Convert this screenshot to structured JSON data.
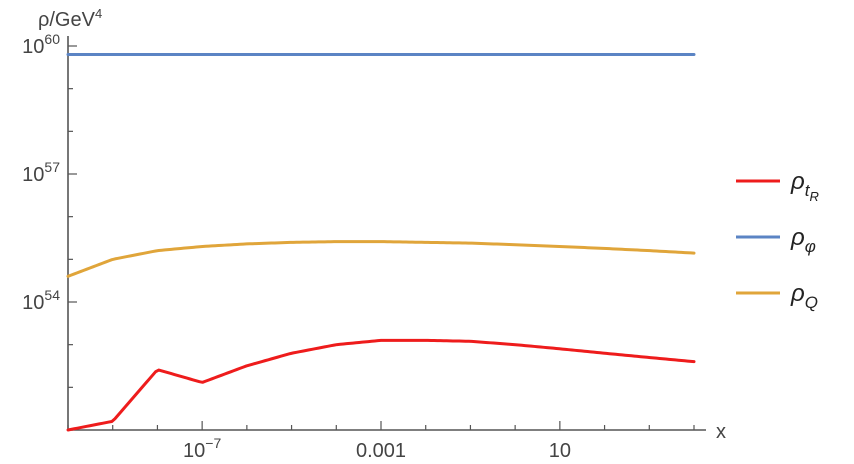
{
  "chart_data": {
    "type": "line",
    "title": "",
    "xlabel": "x",
    "ylabel": "ρ/GeV4",
    "xscale": "log",
    "yscale": "log",
    "xlim": [
      1e-10,
      10000
    ],
    "ylim": [
      1e+51,
      1e+60
    ],
    "grid": false,
    "legend": "right",
    "y_ticks": [
      {
        "value": 1e+60,
        "label_base": "10",
        "label_exp": "60"
      },
      {
        "value": 1e+57,
        "label_base": "10",
        "label_exp": "57"
      },
      {
        "value": 1e+54,
        "label_base": "10",
        "label_exp": "54"
      }
    ],
    "x_ticks": [
      {
        "value": 1e-07,
        "label_base": "10",
        "label_exp": "−7"
      },
      {
        "value": 0.001,
        "label_base": "0.001",
        "label_exp": ""
      },
      {
        "value": 10,
        "label_base": "10",
        "label_exp": ""
      }
    ],
    "series": [
      {
        "name": "ρ_tR",
        "legend_main": "ρ",
        "legend_sub": "t",
        "legend_subsub": "R",
        "color": "#ee1c1c",
        "x": [
          1e-10,
          1e-09,
          1e-08,
          1e-07,
          1e-06,
          1e-05,
          0.0001,
          0.001,
          0.01,
          0.1,
          1,
          10,
          100,
          1000,
          10000
        ],
        "y": [
          1e+51,
          1.6e+51,
          2.6e+52,
          1.3e+52,
          3.2e+52,
          6.3e+52,
          1e+53,
          1.26e+53,
          1.26e+53,
          1.2e+53,
          1e+53,
          8e+52,
          6.3e+52,
          5e+52,
          4e+52
        ]
      },
      {
        "name": "ρ_φ",
        "legend_main": "ρ",
        "legend_sub": "φ",
        "legend_subsub": "",
        "color": "#5b84c4",
        "x": [
          1e-10,
          10000
        ],
        "y": [
          6.3e+59,
          6.3e+59
        ]
      },
      {
        "name": "ρ_Q",
        "legend_main": "ρ",
        "legend_sub": "Q",
        "legend_subsub": "",
        "color": "#e0a53a",
        "x": [
          1e-10,
          1e-09,
          1e-08,
          1e-07,
          1e-06,
          1e-05,
          0.0001,
          0.001,
          0.01,
          0.1,
          1,
          10,
          100,
          1000,
          10000
        ],
        "y": [
          4e+54,
          1e+55,
          1.6e+55,
          2e+55,
          2.3e+55,
          2.5e+55,
          2.6e+55,
          2.6e+55,
          2.5e+55,
          2.4e+55,
          2.2e+55,
          2e+55,
          1.8e+55,
          1.6e+55,
          1.4e+55
        ]
      }
    ]
  }
}
